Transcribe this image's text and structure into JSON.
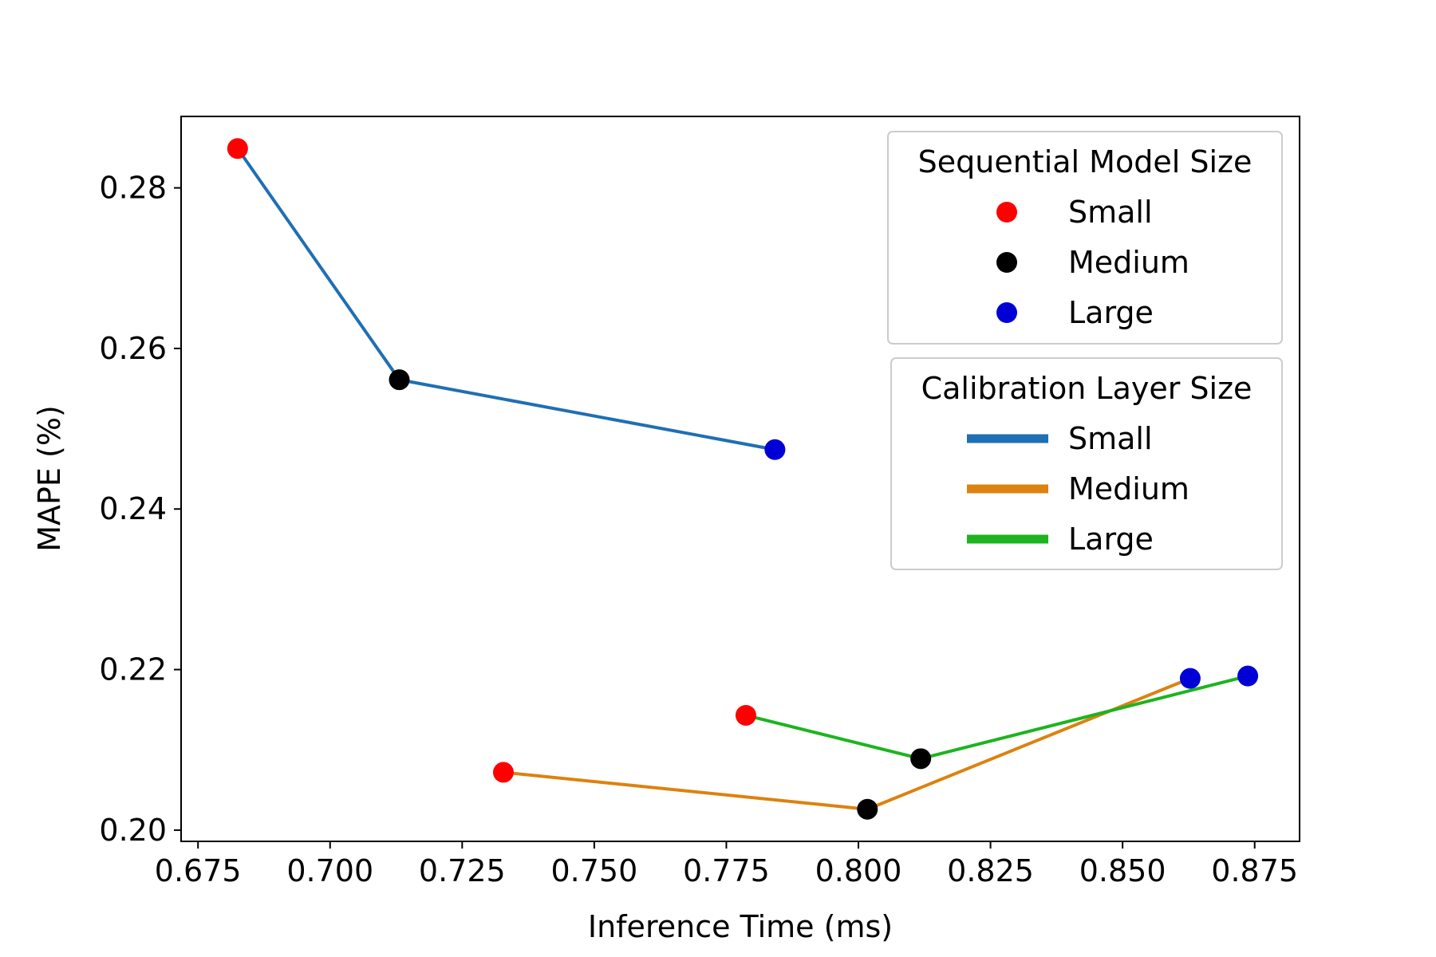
{
  "chart_data": {
    "type": "line",
    "xlabel": "Inference Time (ms)",
    "ylabel": "MAPE (%)",
    "xlim": [
      0.6718,
      0.8835
    ],
    "ylim": [
      0.1986,
      0.2889
    ],
    "x_ticks": [
      "0.675",
      "0.700",
      "0.725",
      "0.750",
      "0.775",
      "0.800",
      "0.825",
      "0.850",
      "0.875"
    ],
    "y_ticks": [
      "0.20",
      "0.22",
      "0.24",
      "0.26",
      "0.28"
    ],
    "grid": false,
    "series": [
      {
        "name": "Small",
        "color": "#1f6fb4",
        "points": [
          {
            "x": 0.6825,
            "y": 0.2849,
            "size": "Small"
          },
          {
            "x": 0.7131,
            "y": 0.2561,
            "size": "Medium"
          },
          {
            "x": 0.7842,
            "y": 0.2474,
            "size": "Large"
          }
        ]
      },
      {
        "name": "Medium",
        "color": "#dc820f",
        "points": [
          {
            "x": 0.7328,
            "y": 0.2072,
            "size": "Small"
          },
          {
            "x": 0.8017,
            "y": 0.2026,
            "size": "Medium"
          },
          {
            "x": 0.8628,
            "y": 0.2189,
            "size": "Large"
          }
        ]
      },
      {
        "name": "Large",
        "color": "#1db41f",
        "points": [
          {
            "x": 0.7787,
            "y": 0.2143,
            "size": "Small"
          },
          {
            "x": 0.8118,
            "y": 0.2089,
            "size": "Medium"
          },
          {
            "x": 0.8737,
            "y": 0.2192,
            "size": "Large"
          }
        ]
      }
    ],
    "marker_colors": {
      "Small": "#ff0000",
      "Medium": "#000000",
      "Large": "#0000d6"
    },
    "legends": [
      {
        "title": "Sequential Model Size",
        "kind": "marker",
        "entries": [
          {
            "label": "Small",
            "color": "#ff0000"
          },
          {
            "label": "Medium",
            "color": "#000000"
          },
          {
            "label": "Large",
            "color": "#0000d6"
          }
        ]
      },
      {
        "title": "Calibration Layer Size",
        "kind": "line",
        "entries": [
          {
            "label": "Small",
            "color": "#1f6fb4"
          },
          {
            "label": "Medium",
            "color": "#dc820f"
          },
          {
            "label": "Large",
            "color": "#1db41f"
          }
        ]
      }
    ],
    "legend_placement": "top-right"
  }
}
